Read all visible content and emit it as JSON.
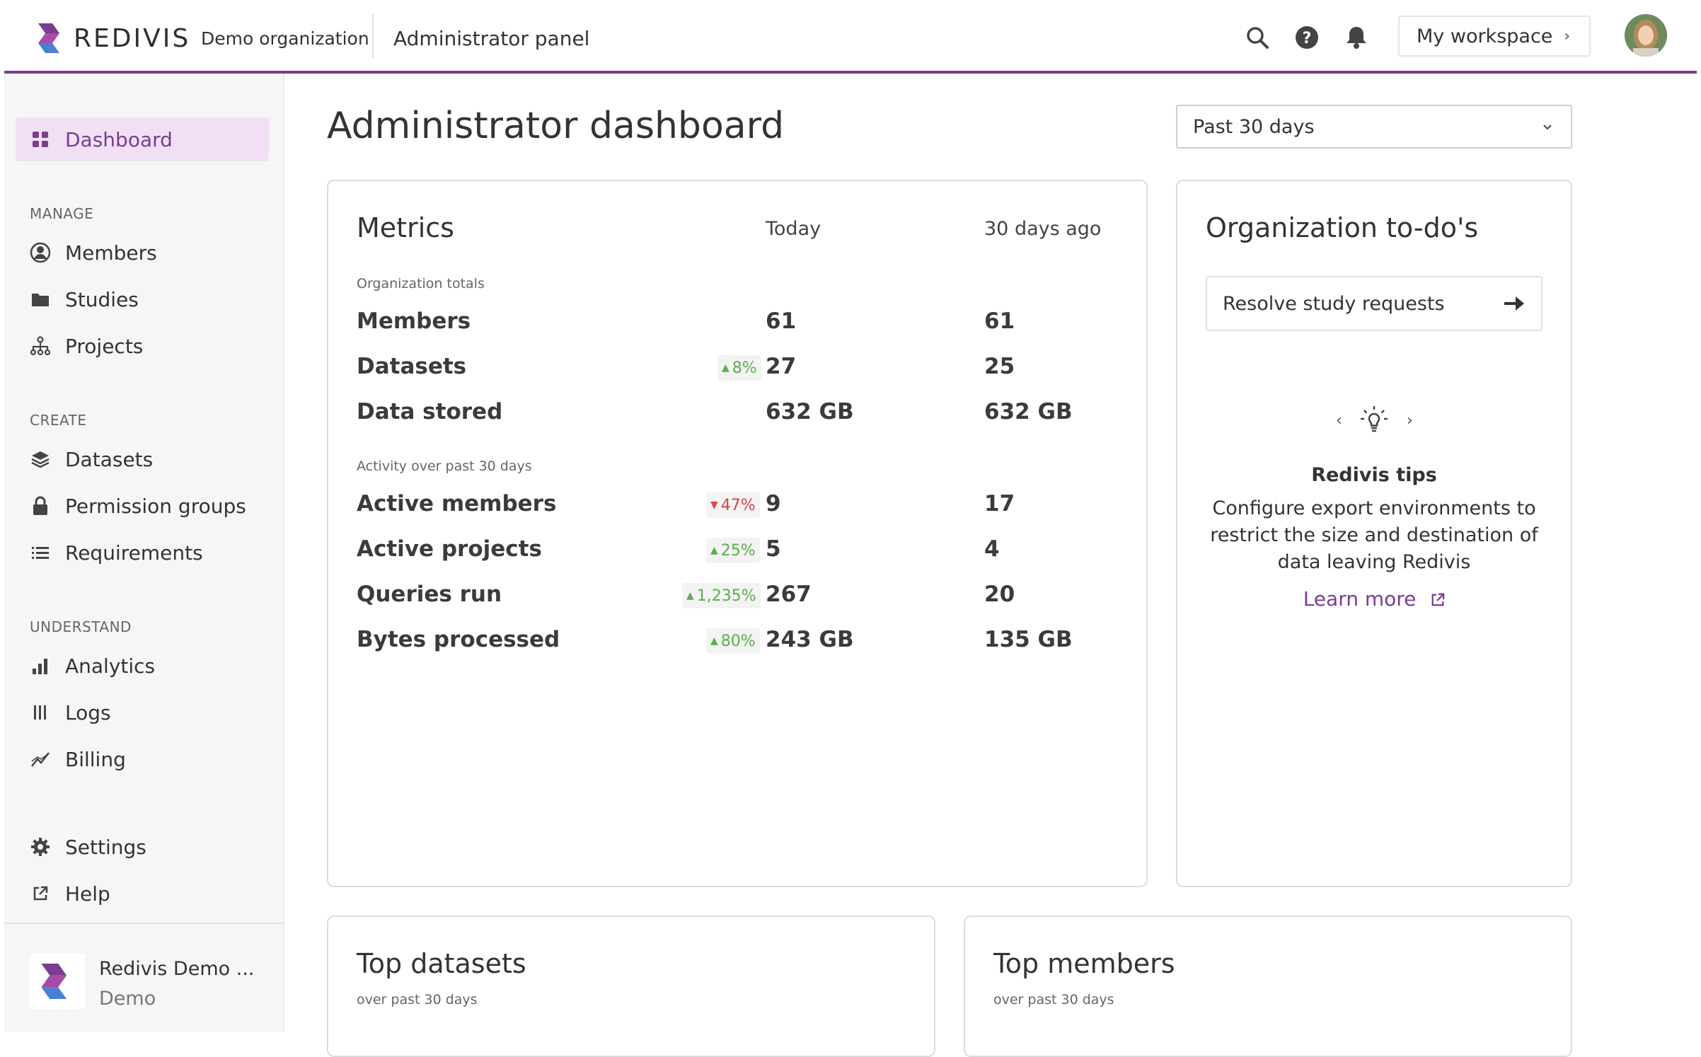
{
  "header": {
    "brand_name": "REDIVIS",
    "org_name": "Demo organization",
    "panel_title": "Administrator panel",
    "workspace_label": "My workspace",
    "icons": [
      "search-icon",
      "help-icon",
      "bell-icon"
    ],
    "accent_color": "#7b3c91"
  },
  "sidebar": {
    "dashboard": "Dashboard",
    "sections": [
      {
        "label": "MANAGE",
        "items": [
          "Members",
          "Studies",
          "Projects"
        ]
      },
      {
        "label": "CREATE",
        "items": [
          "Datasets",
          "Permission groups",
          "Requirements"
        ]
      },
      {
        "label": "UNDERSTAND",
        "items": [
          "Analytics",
          "Logs",
          "Billing"
        ]
      }
    ],
    "settings": "Settings",
    "help": "Help",
    "footer": {
      "name": "Redivis Demo ...",
      "sub": "Demo"
    }
  },
  "main": {
    "title": "Administrator dashboard",
    "range": "Past 30 days"
  },
  "metrics": {
    "title": "Metrics",
    "col_today": "Today",
    "col_ago": "30 days ago",
    "group1": "Organization totals",
    "group2": "Activity over past 30 days",
    "rows": [
      {
        "label": "Members",
        "today": "61",
        "ago": "61",
        "change": "",
        "dir": ""
      },
      {
        "label": "Datasets",
        "today": "27",
        "ago": "25",
        "change": "8%",
        "dir": "up"
      },
      {
        "label": "Data stored",
        "today": "632 GB",
        "ago": "632 GB",
        "change": "",
        "dir": ""
      },
      {
        "label": "Active members",
        "today": "9",
        "ago": "17",
        "change": "47%",
        "dir": "down"
      },
      {
        "label": "Active projects",
        "today": "5",
        "ago": "4",
        "change": "25%",
        "dir": "up"
      },
      {
        "label": "Queries run",
        "today": "267",
        "ago": "20",
        "change": "1,235%",
        "dir": "up"
      },
      {
        "label": "Bytes processed",
        "today": "243 GB",
        "ago": "135 GB",
        "change": "80%",
        "dir": "up"
      }
    ]
  },
  "todos": {
    "title": "Organization to-do's",
    "item": "Resolve study requests",
    "tips_title": "Redivis tips",
    "tips_text": "Configure export environments to restrict the size and destination of data leaving Redivis",
    "learn_more": "Learn more"
  },
  "top_datasets": {
    "title": "Top datasets",
    "sub": "over past 30 days"
  },
  "top_members": {
    "title": "Top members",
    "sub": "over past 30 days"
  }
}
